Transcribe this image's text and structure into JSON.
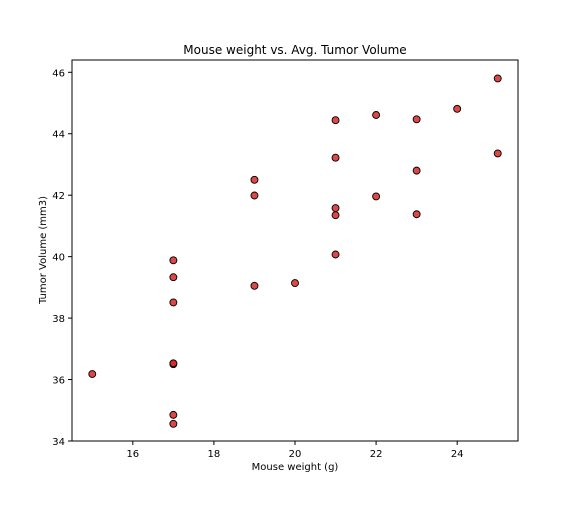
{
  "chart_data": {
    "type": "scatter",
    "title": "Mouse weight vs. Avg. Tumor Volume",
    "xlabel": "Mouse weight (g)",
    "ylabel": "Tumor Volume (mm3)",
    "xlim": [
      14.5,
      25.5
    ],
    "ylim": [
      34,
      46.4
    ],
    "xticks": [
      16,
      18,
      20,
      22,
      24
    ],
    "yticks": [
      34,
      36,
      38,
      40,
      42,
      44,
      46
    ],
    "grid": false,
    "marker_color": "#d62728",
    "marker_edge_color": "#000000",
    "points": [
      {
        "x": 15,
        "y": 36.18
      },
      {
        "x": 17,
        "y": 34.56
      },
      {
        "x": 17,
        "y": 34.85
      },
      {
        "x": 17,
        "y": 36.5
      },
      {
        "x": 17,
        "y": 36.53
      },
      {
        "x": 17,
        "y": 38.51
      },
      {
        "x": 17,
        "y": 39.33
      },
      {
        "x": 17,
        "y": 39.88
      },
      {
        "x": 19,
        "y": 39.05
      },
      {
        "x": 19,
        "y": 41.99
      },
      {
        "x": 19,
        "y": 42.5
      },
      {
        "x": 20,
        "y": 39.14
      },
      {
        "x": 21,
        "y": 40.07
      },
      {
        "x": 21,
        "y": 41.35
      },
      {
        "x": 21,
        "y": 41.58
      },
      {
        "x": 21,
        "y": 43.22
      },
      {
        "x": 21,
        "y": 44.44
      },
      {
        "x": 22,
        "y": 41.96
      },
      {
        "x": 22,
        "y": 44.61
      },
      {
        "x": 23,
        "y": 41.38
      },
      {
        "x": 23,
        "y": 42.8
      },
      {
        "x": 23,
        "y": 44.47
      },
      {
        "x": 24,
        "y": 44.81
      },
      {
        "x": 25,
        "y": 43.36
      },
      {
        "x": 25,
        "y": 45.8
      }
    ]
  }
}
